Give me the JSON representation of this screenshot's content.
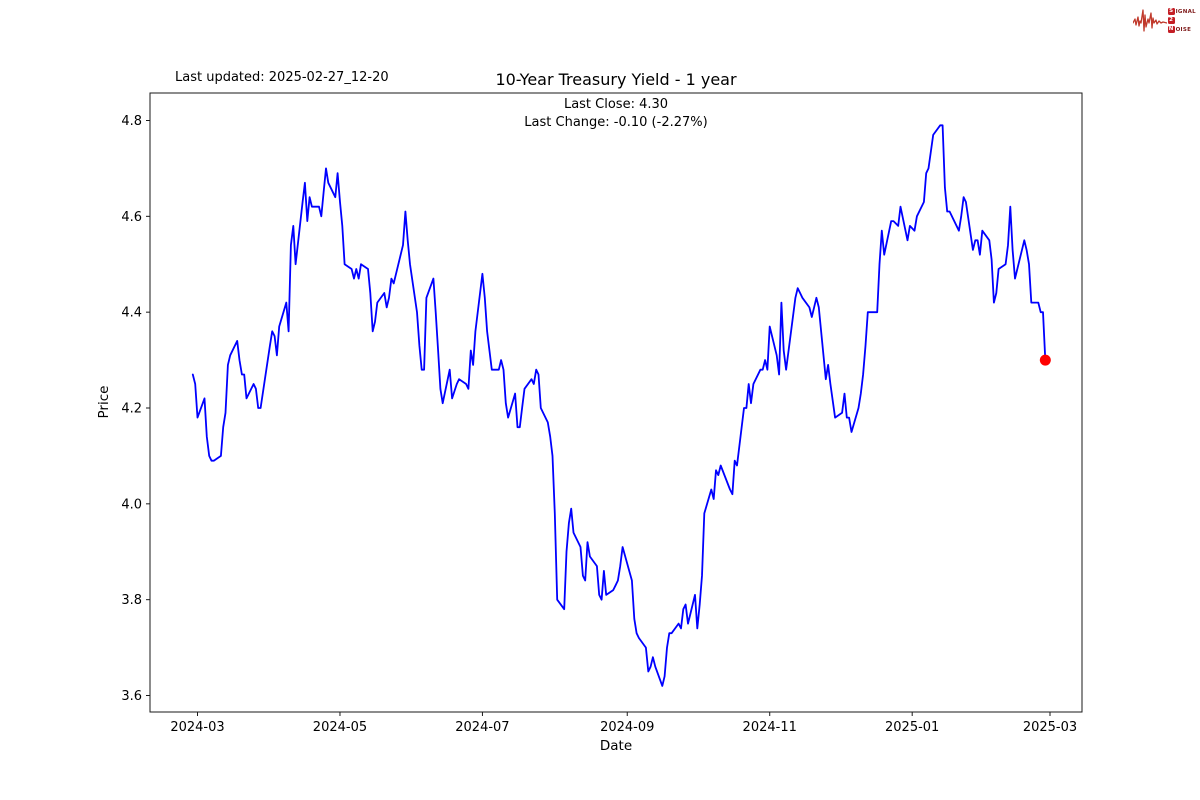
{
  "header": {
    "last_updated": "Last updated: 2025-02-27_12-20",
    "title": "10-Year Treasury Yield - 1 year",
    "subtitle_line1": "Last Close: 4.30",
    "subtitle_line2": "Last Change: -0.10 (-2.27%)"
  },
  "logo": {
    "badge1": "S",
    "rest1": "IGNAL",
    "badge2": "2",
    "badge3": "N",
    "rest3": "OISE",
    "accent_color": "#c41e25"
  },
  "chart_data": {
    "type": "line",
    "title": "10-Year Treasury Yield - 1 year",
    "xlabel": "Date",
    "ylabel": "Price",
    "last_close": 4.3,
    "last_change": "-0.10 (-2.27%)",
    "x_ticks": [
      "2024-03",
      "2024-05",
      "2024-07",
      "2024-09",
      "2024-11",
      "2025-01",
      "2025-03"
    ],
    "y_ticks": [
      "3.6",
      "3.8",
      "4.0",
      "4.2",
      "4.4",
      "4.6",
      "4.8"
    ],
    "xlim": [
      "2024-02-10",
      "2025-03-17"
    ],
    "ylim": [
      3.57,
      4.85
    ],
    "grid": false,
    "legend": "none",
    "line_color": "#0000ff",
    "marker_color": "#ff0000",
    "series": [
      {
        "name": "10-Year Treasury Yield",
        "points": [
          [
            "2024-02-28",
            4.27
          ],
          [
            "2024-02-29",
            4.25
          ],
          [
            "2024-03-01",
            4.18
          ],
          [
            "2024-03-04",
            4.22
          ],
          [
            "2024-03-05",
            4.14
          ],
          [
            "2024-03-06",
            4.1
          ],
          [
            "2024-03-07",
            4.09
          ],
          [
            "2024-03-08",
            4.09
          ],
          [
            "2024-03-11",
            4.1
          ],
          [
            "2024-03-12",
            4.16
          ],
          [
            "2024-03-13",
            4.19
          ],
          [
            "2024-03-14",
            4.29
          ],
          [
            "2024-03-15",
            4.31
          ],
          [
            "2024-03-18",
            4.34
          ],
          [
            "2024-03-19",
            4.3
          ],
          [
            "2024-03-20",
            4.27
          ],
          [
            "2024-03-21",
            4.27
          ],
          [
            "2024-03-22",
            4.22
          ],
          [
            "2024-03-25",
            4.25
          ],
          [
            "2024-03-26",
            4.24
          ],
          [
            "2024-03-27",
            4.2
          ],
          [
            "2024-03-28",
            4.2
          ],
          [
            "2024-04-01",
            4.33
          ],
          [
            "2024-04-02",
            4.36
          ],
          [
            "2024-04-03",
            4.35
          ],
          [
            "2024-04-04",
            4.31
          ],
          [
            "2024-04-05",
            4.37
          ],
          [
            "2024-04-08",
            4.42
          ],
          [
            "2024-04-09",
            4.36
          ],
          [
            "2024-04-10",
            4.54
          ],
          [
            "2024-04-11",
            4.58
          ],
          [
            "2024-04-12",
            4.5
          ],
          [
            "2024-04-15",
            4.63
          ],
          [
            "2024-04-16",
            4.67
          ],
          [
            "2024-04-17",
            4.59
          ],
          [
            "2024-04-18",
            4.64
          ],
          [
            "2024-04-19",
            4.62
          ],
          [
            "2024-04-22",
            4.62
          ],
          [
            "2024-04-23",
            4.6
          ],
          [
            "2024-04-24",
            4.65
          ],
          [
            "2024-04-25",
            4.7
          ],
          [
            "2024-04-26",
            4.67
          ],
          [
            "2024-04-29",
            4.64
          ],
          [
            "2024-04-30",
            4.69
          ],
          [
            "2024-05-01",
            4.63
          ],
          [
            "2024-05-02",
            4.58
          ],
          [
            "2024-05-03",
            4.5
          ],
          [
            "2024-05-06",
            4.49
          ],
          [
            "2024-05-07",
            4.47
          ],
          [
            "2024-05-08",
            4.49
          ],
          [
            "2024-05-09",
            4.47
          ],
          [
            "2024-05-10",
            4.5
          ],
          [
            "2024-05-13",
            4.49
          ],
          [
            "2024-05-14",
            4.44
          ],
          [
            "2024-05-15",
            4.36
          ],
          [
            "2024-05-16",
            4.38
          ],
          [
            "2024-05-17",
            4.42
          ],
          [
            "2024-05-20",
            4.44
          ],
          [
            "2024-05-21",
            4.41
          ],
          [
            "2024-05-22",
            4.43
          ],
          [
            "2024-05-23",
            4.47
          ],
          [
            "2024-05-24",
            4.46
          ],
          [
            "2024-05-28",
            4.54
          ],
          [
            "2024-05-29",
            4.61
          ],
          [
            "2024-05-30",
            4.55
          ],
          [
            "2024-05-31",
            4.5
          ],
          [
            "2024-06-03",
            4.4
          ],
          [
            "2024-06-04",
            4.33
          ],
          [
            "2024-06-05",
            4.28
          ],
          [
            "2024-06-06",
            4.28
          ],
          [
            "2024-06-07",
            4.43
          ],
          [
            "2024-06-10",
            4.47
          ],
          [
            "2024-06-11",
            4.4
          ],
          [
            "2024-06-12",
            4.32
          ],
          [
            "2024-06-13",
            4.24
          ],
          [
            "2024-06-14",
            4.21
          ],
          [
            "2024-06-17",
            4.28
          ],
          [
            "2024-06-18",
            4.22
          ],
          [
            "2024-06-20",
            4.25
          ],
          [
            "2024-06-21",
            4.26
          ],
          [
            "2024-06-24",
            4.25
          ],
          [
            "2024-06-25",
            4.24
          ],
          [
            "2024-06-26",
            4.32
          ],
          [
            "2024-06-27",
            4.29
          ],
          [
            "2024-06-28",
            4.36
          ],
          [
            "2024-07-01",
            4.48
          ],
          [
            "2024-07-02",
            4.43
          ],
          [
            "2024-07-03",
            4.36
          ],
          [
            "2024-07-05",
            4.28
          ],
          [
            "2024-07-08",
            4.28
          ],
          [
            "2024-07-09",
            4.3
          ],
          [
            "2024-07-10",
            4.28
          ],
          [
            "2024-07-11",
            4.21
          ],
          [
            "2024-07-12",
            4.18
          ],
          [
            "2024-07-15",
            4.23
          ],
          [
            "2024-07-16",
            4.16
          ],
          [
            "2024-07-17",
            4.16
          ],
          [
            "2024-07-18",
            4.2
          ],
          [
            "2024-07-19",
            4.24
          ],
          [
            "2024-07-22",
            4.26
          ],
          [
            "2024-07-23",
            4.25
          ],
          [
            "2024-07-24",
            4.28
          ],
          [
            "2024-07-25",
            4.27
          ],
          [
            "2024-07-26",
            4.2
          ],
          [
            "2024-07-29",
            4.17
          ],
          [
            "2024-07-30",
            4.14
          ],
          [
            "2024-07-31",
            4.1
          ],
          [
            "2024-08-01",
            3.98
          ],
          [
            "2024-08-02",
            3.8
          ],
          [
            "2024-08-05",
            3.78
          ],
          [
            "2024-08-06",
            3.9
          ],
          [
            "2024-08-07",
            3.96
          ],
          [
            "2024-08-08",
            3.99
          ],
          [
            "2024-08-09",
            3.94
          ],
          [
            "2024-08-12",
            3.91
          ],
          [
            "2024-08-13",
            3.85
          ],
          [
            "2024-08-14",
            3.84
          ],
          [
            "2024-08-15",
            3.92
          ],
          [
            "2024-08-16",
            3.89
          ],
          [
            "2024-08-19",
            3.87
          ],
          [
            "2024-08-20",
            3.81
          ],
          [
            "2024-08-21",
            3.8
          ],
          [
            "2024-08-22",
            3.86
          ],
          [
            "2024-08-23",
            3.81
          ],
          [
            "2024-08-26",
            3.82
          ],
          [
            "2024-08-27",
            3.83
          ],
          [
            "2024-08-28",
            3.84
          ],
          [
            "2024-08-29",
            3.87
          ],
          [
            "2024-08-30",
            3.91
          ],
          [
            "2024-09-03",
            3.84
          ],
          [
            "2024-09-04",
            3.76
          ],
          [
            "2024-09-05",
            3.73
          ],
          [
            "2024-09-06",
            3.72
          ],
          [
            "2024-09-09",
            3.7
          ],
          [
            "2024-09-10",
            3.65
          ],
          [
            "2024-09-11",
            3.66
          ],
          [
            "2024-09-12",
            3.68
          ],
          [
            "2024-09-13",
            3.66
          ],
          [
            "2024-09-16",
            3.62
          ],
          [
            "2024-09-17",
            3.64
          ],
          [
            "2024-09-18",
            3.7
          ],
          [
            "2024-09-19",
            3.73
          ],
          [
            "2024-09-20",
            3.73
          ],
          [
            "2024-09-23",
            3.75
          ],
          [
            "2024-09-24",
            3.74
          ],
          [
            "2024-09-25",
            3.78
          ],
          [
            "2024-09-26",
            3.79
          ],
          [
            "2024-09-27",
            3.75
          ],
          [
            "2024-09-30",
            3.81
          ],
          [
            "2024-10-01",
            3.74
          ],
          [
            "2024-10-02",
            3.79
          ],
          [
            "2024-10-03",
            3.85
          ],
          [
            "2024-10-04",
            3.98
          ],
          [
            "2024-10-07",
            4.03
          ],
          [
            "2024-10-08",
            4.01
          ],
          [
            "2024-10-09",
            4.07
          ],
          [
            "2024-10-10",
            4.06
          ],
          [
            "2024-10-11",
            4.08
          ],
          [
            "2024-10-15",
            4.03
          ],
          [
            "2024-10-16",
            4.02
          ],
          [
            "2024-10-17",
            4.09
          ],
          [
            "2024-10-18",
            4.08
          ],
          [
            "2024-10-21",
            4.2
          ],
          [
            "2024-10-22",
            4.2
          ],
          [
            "2024-10-23",
            4.25
          ],
          [
            "2024-10-24",
            4.21
          ],
          [
            "2024-10-25",
            4.25
          ],
          [
            "2024-10-28",
            4.28
          ],
          [
            "2024-10-29",
            4.28
          ],
          [
            "2024-10-30",
            4.3
          ],
          [
            "2024-10-31",
            4.28
          ],
          [
            "2024-11-01",
            4.37
          ],
          [
            "2024-11-04",
            4.31
          ],
          [
            "2024-11-05",
            4.27
          ],
          [
            "2024-11-06",
            4.42
          ],
          [
            "2024-11-07",
            4.32
          ],
          [
            "2024-11-08",
            4.28
          ],
          [
            "2024-11-12",
            4.43
          ],
          [
            "2024-11-13",
            4.45
          ],
          [
            "2024-11-14",
            4.44
          ],
          [
            "2024-11-15",
            4.43
          ],
          [
            "2024-11-18",
            4.41
          ],
          [
            "2024-11-19",
            4.39
          ],
          [
            "2024-11-20",
            4.41
          ],
          [
            "2024-11-21",
            4.43
          ],
          [
            "2024-11-22",
            4.41
          ],
          [
            "2024-11-25",
            4.26
          ],
          [
            "2024-11-26",
            4.29
          ],
          [
            "2024-11-27",
            4.25
          ],
          [
            "2024-11-29",
            4.18
          ],
          [
            "2024-12-02",
            4.19
          ],
          [
            "2024-12-03",
            4.23
          ],
          [
            "2024-12-04",
            4.18
          ],
          [
            "2024-12-05",
            4.18
          ],
          [
            "2024-12-06",
            4.15
          ],
          [
            "2024-12-09",
            4.2
          ],
          [
            "2024-12-10",
            4.23
          ],
          [
            "2024-12-11",
            4.27
          ],
          [
            "2024-12-12",
            4.33
          ],
          [
            "2024-12-13",
            4.4
          ],
          [
            "2024-12-16",
            4.4
          ],
          [
            "2024-12-17",
            4.4
          ],
          [
            "2024-12-18",
            4.5
          ],
          [
            "2024-12-19",
            4.57
          ],
          [
            "2024-12-20",
            4.52
          ],
          [
            "2024-12-23",
            4.59
          ],
          [
            "2024-12-24",
            4.59
          ],
          [
            "2024-12-26",
            4.58
          ],
          [
            "2024-12-27",
            4.62
          ],
          [
            "2024-12-30",
            4.55
          ],
          [
            "2024-12-31",
            4.58
          ],
          [
            "2025-01-02",
            4.57
          ],
          [
            "2025-01-03",
            4.6
          ],
          [
            "2025-01-06",
            4.63
          ],
          [
            "2025-01-07",
            4.69
          ],
          [
            "2025-01-08",
            4.7
          ],
          [
            "2025-01-10",
            4.77
          ],
          [
            "2025-01-13",
            4.79
          ],
          [
            "2025-01-14",
            4.79
          ],
          [
            "2025-01-15",
            4.66
          ],
          [
            "2025-01-16",
            4.61
          ],
          [
            "2025-01-17",
            4.61
          ],
          [
            "2025-01-21",
            4.57
          ],
          [
            "2025-01-22",
            4.6
          ],
          [
            "2025-01-23",
            4.64
          ],
          [
            "2025-01-24",
            4.63
          ],
          [
            "2025-01-27",
            4.53
          ],
          [
            "2025-01-28",
            4.55
          ],
          [
            "2025-01-29",
            4.55
          ],
          [
            "2025-01-30",
            4.52
          ],
          [
            "2025-01-31",
            4.57
          ],
          [
            "2025-02-03",
            4.55
          ],
          [
            "2025-02-04",
            4.51
          ],
          [
            "2025-02-05",
            4.42
          ],
          [
            "2025-02-06",
            4.44
          ],
          [
            "2025-02-07",
            4.49
          ],
          [
            "2025-02-10",
            4.5
          ],
          [
            "2025-02-11",
            4.54
          ],
          [
            "2025-02-12",
            4.62
          ],
          [
            "2025-02-13",
            4.53
          ],
          [
            "2025-02-14",
            4.47
          ],
          [
            "2025-02-18",
            4.55
          ],
          [
            "2025-02-19",
            4.53
          ],
          [
            "2025-02-20",
            4.5
          ],
          [
            "2025-02-21",
            4.42
          ],
          [
            "2025-02-24",
            4.42
          ],
          [
            "2025-02-25",
            4.4
          ],
          [
            "2025-02-26",
            4.4
          ],
          [
            "2025-02-27",
            4.3
          ]
        ]
      }
    ]
  }
}
